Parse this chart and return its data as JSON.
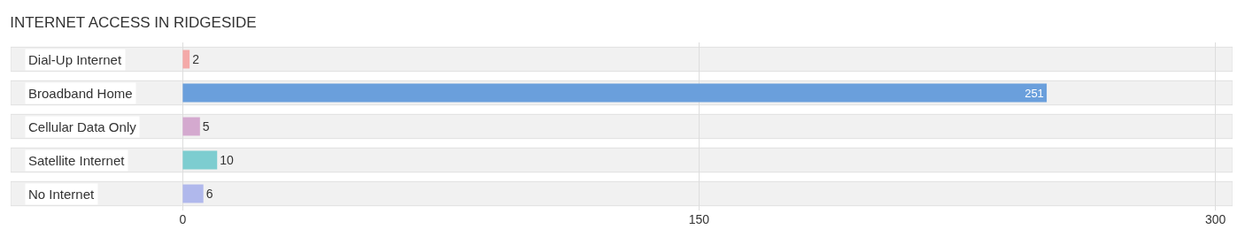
{
  "chart_data": {
    "type": "bar",
    "orientation": "horizontal",
    "title": "INTERNET ACCESS IN RIDGESIDE",
    "categories": [
      "Dial-Up Internet",
      "Broadband Home",
      "Cellular Data Only",
      "Satellite Internet",
      "No Internet"
    ],
    "values": [
      2,
      251,
      5,
      10,
      6
    ],
    "colors": [
      "#f4a9a8",
      "#6a9fdc",
      "#d4a9cf",
      "#7dcdd0",
      "#b0b8ec"
    ],
    "xlim": [
      -50,
      305
    ],
    "xticks": [
      0,
      150,
      300
    ],
    "grid": "x",
    "data_labels": true
  }
}
